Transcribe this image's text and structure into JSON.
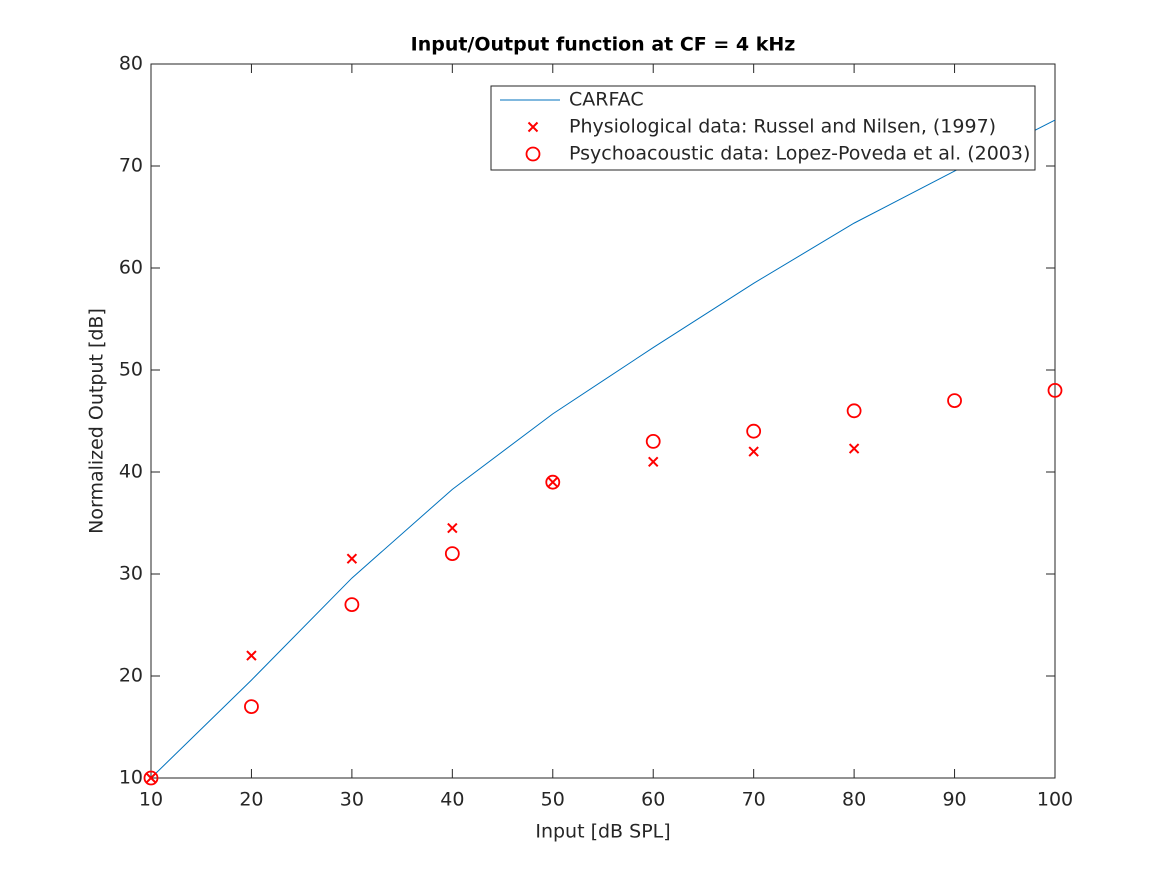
{
  "chart_data": {
    "type": "line",
    "title": "Input/Output function at CF = 4 kHz",
    "xlabel": "Input [dB SPL]",
    "ylabel": "Normalized Output [dB]",
    "xlim": [
      10,
      100
    ],
    "xticks": [
      10,
      20,
      30,
      40,
      50,
      60,
      70,
      80,
      90,
      100
    ],
    "ylim": [
      10,
      80
    ],
    "yticks": [
      10,
      20,
      30,
      40,
      50,
      60,
      70,
      80
    ],
    "legend": "upper right",
    "series": [
      {
        "name": "CARFAC",
        "color": "#0072bd",
        "style": "line",
        "x": [
          10,
          20,
          30,
          40,
          50,
          60,
          70,
          80,
          90,
          100
        ],
        "values": [
          10,
          19.6,
          29.6,
          38.3,
          45.7,
          52.2,
          58.5,
          64.4,
          69.5,
          74.5
        ]
      },
      {
        "name": "Physiological data: Russel and Nilsen, (1997)",
        "color": "#ff0000",
        "style": "x",
        "x": [
          10,
          20,
          30,
          40,
          50,
          60,
          70,
          80
        ],
        "values": [
          10,
          22,
          31.5,
          34.5,
          39,
          41,
          42,
          42.3
        ]
      },
      {
        "name": "Psychoacoustic data: Lopez-Poveda et al. (2003)",
        "color": "#ff0000",
        "style": "o",
        "x": [
          10,
          20,
          30,
          40,
          50,
          60,
          70,
          80,
          90,
          100
        ],
        "values": [
          10,
          17,
          27,
          32,
          39,
          43,
          44,
          46,
          47,
          48
        ]
      }
    ]
  }
}
